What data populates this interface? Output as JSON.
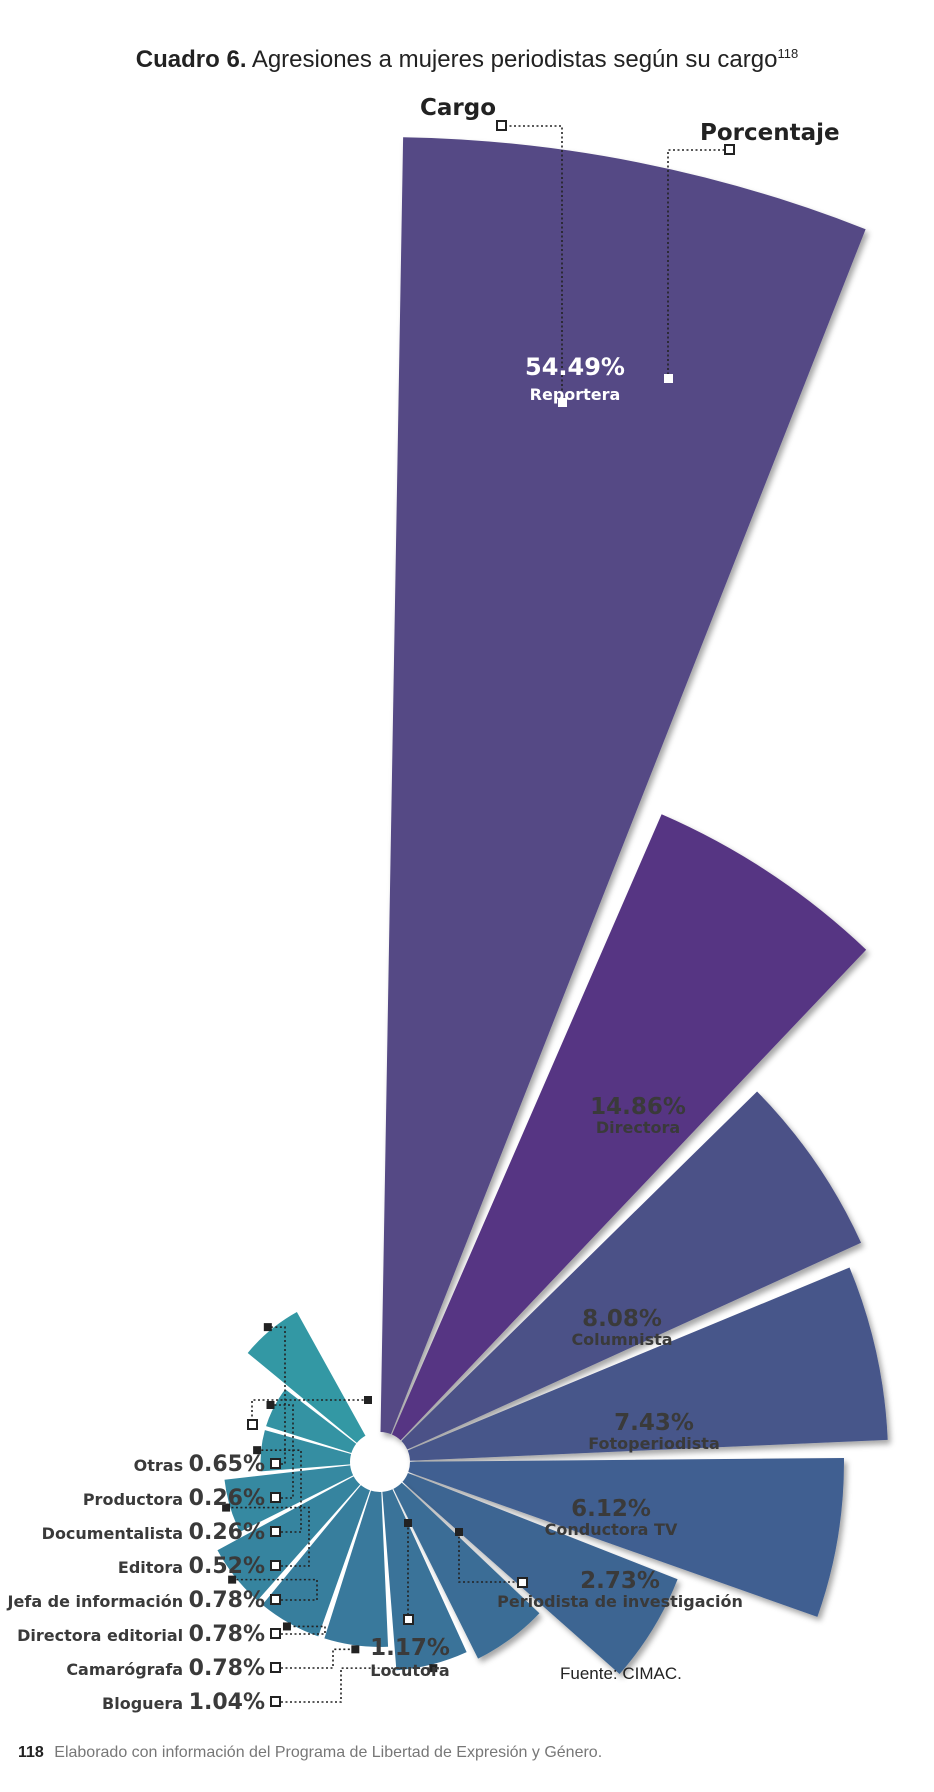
{
  "title": {
    "bold": "Cuadro 6.",
    "text": "Agresiones a mujeres periodistas según su cargo",
    "footnote": "118"
  },
  "legend": {
    "category_label": "Cargo",
    "value_label": "Porcentaje"
  },
  "chart_data": {
    "type": "polar-area",
    "title": "Agresiones a mujeres periodistas según su cargo",
    "unit": "%",
    "slices": [
      {
        "label": "Reportera",
        "value": 54.49,
        "display": "54.49%",
        "color": "#544885"
      },
      {
        "label": "Directora",
        "value": 14.86,
        "display": "14.86%",
        "color": "#573483"
      },
      {
        "label": "Columnista",
        "value": 8.08,
        "display": "8.08%",
        "color": "#4b5187"
      },
      {
        "label": "Fotoperiodista",
        "value": 7.43,
        "display": "7.43%",
        "color": "#47568a"
      },
      {
        "label": "Conductora TV",
        "value": 6.12,
        "display": "6.12%",
        "color": "#415f91"
      },
      {
        "label": "Periodista de investigación",
        "value": 2.73,
        "display": "2.73%",
        "color": "#3e6592"
      },
      {
        "label": "Locutora",
        "value": 1.17,
        "display": "1.17%",
        "color": "#3b6d96"
      },
      {
        "label": "Bloguera",
        "value": 1.04,
        "display": "1.04%",
        "color": "#3a7399"
      },
      {
        "label": "Camarógrafa",
        "value": 0.78,
        "display": "0.78%",
        "color": "#39799c"
      },
      {
        "label": "Directora editorial",
        "value": 0.78,
        "display": "0.78%",
        "color": "#377e9d"
      },
      {
        "label": "Jefa de información",
        "value": 0.78,
        "display": "0.78%",
        "color": "#36849f"
      },
      {
        "label": "Editora",
        "value": 0.52,
        "display": "0.52%",
        "color": "#3689a1"
      },
      {
        "label": "Documentalista",
        "value": 0.26,
        "display": "0.26%",
        "color": "#358ea2"
      },
      {
        "label": "Productora",
        "value": 0.26,
        "display": "0.26%",
        "color": "#3493a3"
      },
      {
        "label": "Otras",
        "value": 0.65,
        "display": "0.65%",
        "color": "#3398a4"
      }
    ]
  },
  "source": "Fuente: CIMAC.",
  "footer": {
    "page_number": "118",
    "text": "Elaborado con información del Programa de Libertad de Expresión y Género."
  }
}
